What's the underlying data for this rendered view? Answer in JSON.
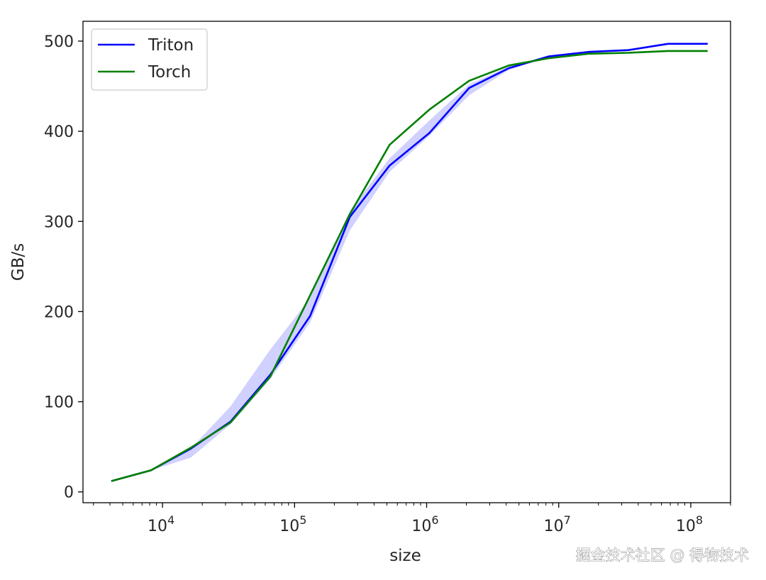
{
  "chart_data": {
    "type": "line",
    "xscale": "log",
    "xlabel": "size",
    "ylabel": "GB/s",
    "xlim": [
      2500,
      200000000
    ],
    "ylim": [
      -12,
      522
    ],
    "xticks": [
      {
        "value": 10000,
        "base": "10",
        "exp": "4"
      },
      {
        "value": 100000,
        "base": "10",
        "exp": "5"
      },
      {
        "value": 1000000,
        "base": "10",
        "exp": "6"
      },
      {
        "value": 10000000,
        "base": "10",
        "exp": "7"
      },
      {
        "value": 100000000,
        "base": "10",
        "exp": "8"
      }
    ],
    "yticks": [
      "0",
      "100",
      "200",
      "300",
      "400",
      "500"
    ],
    "legend": {
      "position": "top-left"
    },
    "x": [
      4096,
      8192,
      16384,
      32768,
      65536,
      131072,
      262144,
      524288,
      1048576,
      2097152,
      4194304,
      8388608,
      16777216,
      33554432,
      67108864,
      134217728
    ],
    "series": [
      {
        "name": "Triton",
        "color": "#0000ff",
        "values": [
          12,
          24,
          48,
          78,
          130,
          195,
          305,
          362,
          398,
          448,
          470,
          483,
          488,
          490,
          497,
          497
        ],
        "band_low": [
          12,
          24,
          38,
          75,
          125,
          188,
          290,
          355,
          395,
          440,
          468,
          482,
          487,
          489,
          496,
          496
        ],
        "band_high": [
          12,
          24,
          48,
          95,
          158,
          215,
          312,
          370,
          412,
          452,
          472,
          484,
          489,
          491,
          498,
          498
        ]
      },
      {
        "name": "Torch",
        "color": "#008000",
        "values": [
          12,
          24,
          49,
          77,
          128,
          218,
          308,
          385,
          424,
          456,
          473,
          481,
          486,
          487,
          489,
          489
        ],
        "band_low": [
          12,
          24,
          49,
          77,
          128,
          218,
          308,
          385,
          424,
          456,
          473,
          481,
          486,
          487,
          489,
          489
        ],
        "band_high": [
          12,
          24,
          49,
          77,
          128,
          218,
          308,
          385,
          424,
          456,
          473,
          481,
          486,
          487,
          489,
          489
        ]
      }
    ]
  },
  "watermark": "掘金技术社区 @ 得物技术"
}
